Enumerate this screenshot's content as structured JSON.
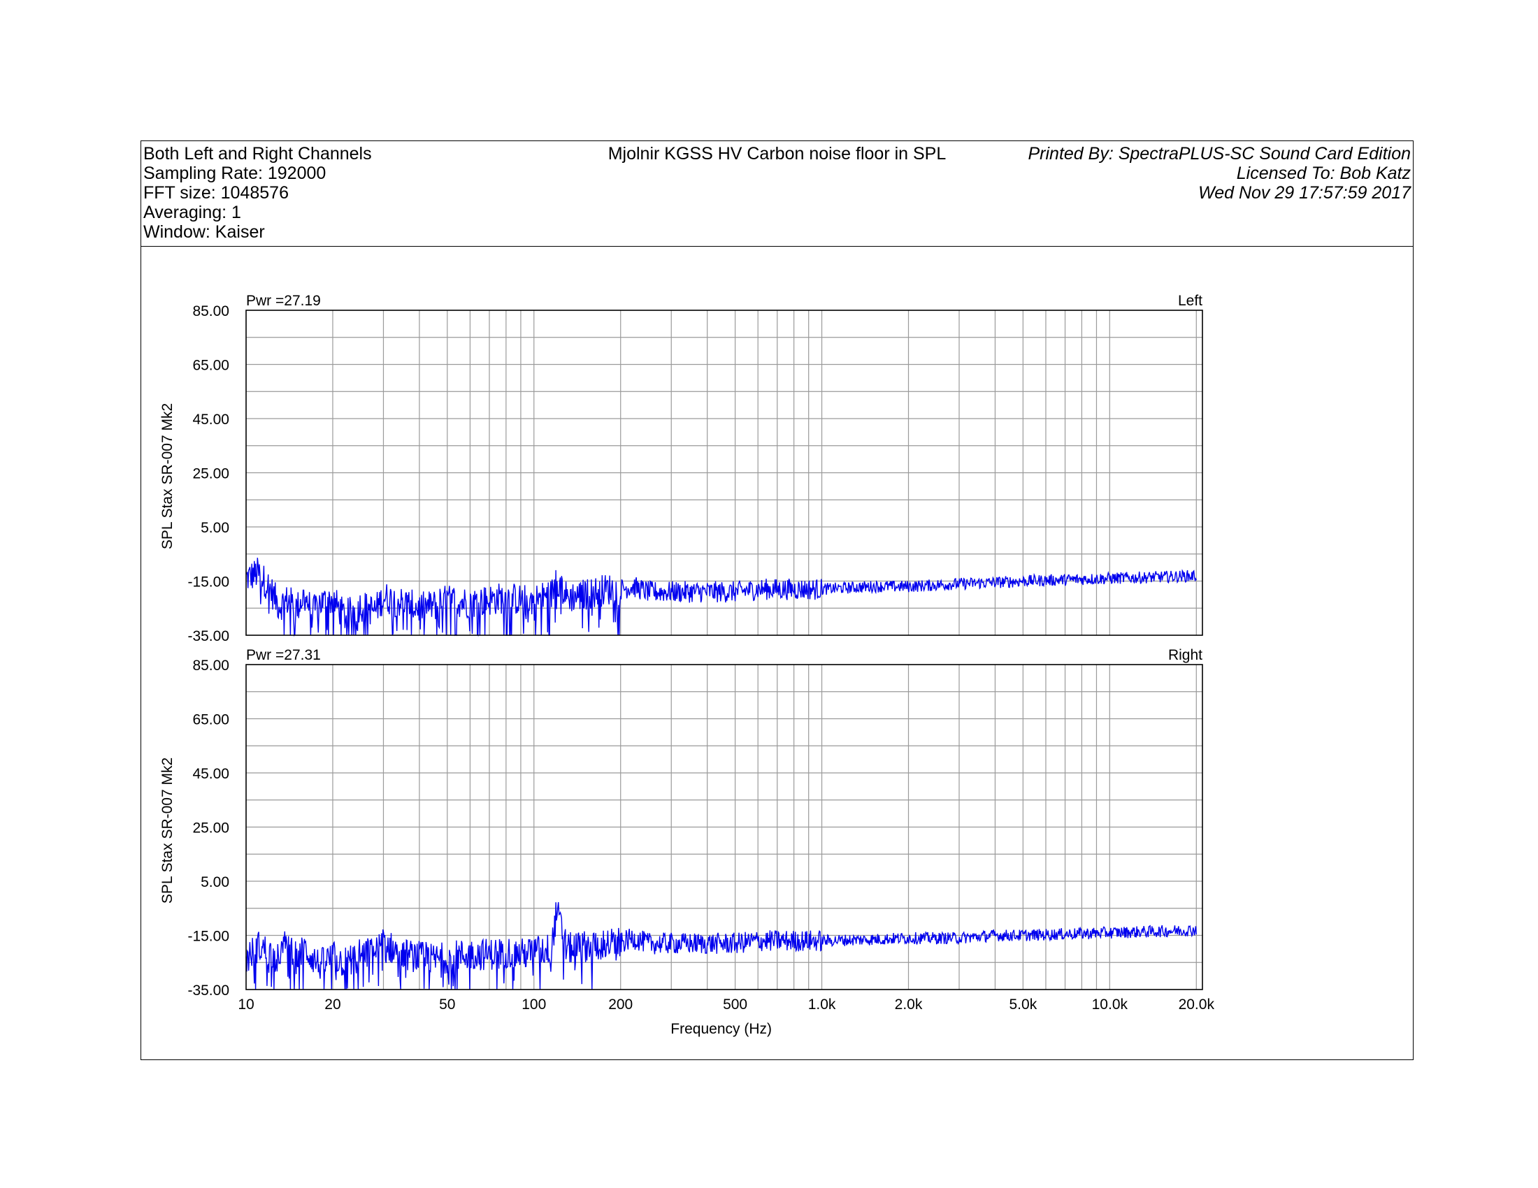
{
  "header": {
    "left": [
      "Both Left and Right Channels",
      "Sampling Rate: 192000",
      "FFT size: 1048576",
      "Averaging: 1",
      "Window: Kaiser"
    ],
    "center": "Mjolnir KGSS HV Carbon noise floor in SPL",
    "right": [
      "Printed By: SpectraPLUS-SC Sound Card Edition",
      "Licensed To: Bob Katz",
      "Wed Nov 29 17:57:59 2017"
    ]
  },
  "chart_data": [
    {
      "type": "line",
      "channel": "Left",
      "power_label": "Pwr =27.19",
      "ylabel": "SPL Stax SR-007 Mk2",
      "xlabel": "",
      "xscale": "log",
      "xlim": [
        10,
        21000
      ],
      "ylim": [
        -35,
        85
      ],
      "y_ticks": [
        85,
        65,
        45,
        25,
        5,
        -15,
        -35
      ],
      "y_tick_labels": [
        "85.00",
        "65.00",
        "45.00",
        "25.00",
        "5.00",
        "-15.00",
        "-35.00"
      ],
      "grid": true,
      "line_color": "#0000ee",
      "series_points": [
        [
          10,
          -14
        ],
        [
          11,
          -12
        ],
        [
          12,
          -17
        ],
        [
          13,
          -24
        ],
        [
          14,
          -22
        ],
        [
          15,
          -25
        ],
        [
          16,
          -20
        ],
        [
          17,
          -27
        ],
        [
          18,
          -23
        ],
        [
          20,
          -22
        ],
        [
          22,
          -28
        ],
        [
          25,
          -24
        ],
        [
          28,
          -26
        ],
        [
          30,
          -21
        ],
        [
          35,
          -23
        ],
        [
          40,
          -25
        ],
        [
          45,
          -24
        ],
        [
          50,
          -22
        ],
        [
          60,
          -23
        ],
        [
          70,
          -22
        ],
        [
          80,
          -21
        ],
        [
          90,
          -22
        ],
        [
          100,
          -22
        ],
        [
          115,
          -20
        ],
        [
          120,
          -14
        ],
        [
          130,
          -21
        ],
        [
          150,
          -20
        ],
        [
          180,
          -18
        ],
        [
          200,
          -18
        ],
        [
          220,
          -17
        ],
        [
          250,
          -19
        ],
        [
          300,
          -19
        ],
        [
          400,
          -19
        ],
        [
          500,
          -19
        ],
        [
          600,
          -18
        ],
        [
          700,
          -18
        ],
        [
          800,
          -18
        ],
        [
          1000,
          -18
        ],
        [
          1500,
          -17
        ],
        [
          2000,
          -17
        ],
        [
          3000,
          -16
        ],
        [
          4000,
          -15.5
        ],
        [
          5000,
          -15
        ],
        [
          7000,
          -14.5
        ],
        [
          10000,
          -14
        ],
        [
          15000,
          -13.5
        ],
        [
          20000,
          -13
        ]
      ]
    },
    {
      "type": "line",
      "channel": "Right",
      "power_label": "Pwr =27.31",
      "ylabel": "SPL Stax SR-007 Mk2",
      "xlabel": "Frequency (Hz)",
      "xscale": "log",
      "xlim": [
        10,
        21000
      ],
      "ylim": [
        -35,
        85
      ],
      "x_ticks": [
        10,
        20,
        50,
        100,
        200,
        500,
        1000,
        2000,
        5000,
        10000,
        20000
      ],
      "x_tick_labels": [
        "10",
        "20",
        "50",
        "100",
        "200",
        "500",
        "1.0k",
        "2.0k",
        "5.0k",
        "10.0k",
        "20.0k"
      ],
      "y_ticks": [
        85,
        65,
        45,
        25,
        5,
        -15,
        -35
      ],
      "y_tick_labels": [
        "85.00",
        "65.00",
        "45.00",
        "25.00",
        "5.00",
        "-15.00",
        "-35.00"
      ],
      "grid": true,
      "line_color": "#0000ee",
      "series_points": [
        [
          10,
          -24
        ],
        [
          11,
          -19
        ],
        [
          12,
          -21
        ],
        [
          13,
          -24
        ],
        [
          14,
          -16
        ],
        [
          15,
          -24
        ],
        [
          16,
          -20
        ],
        [
          18,
          -26
        ],
        [
          20,
          -23
        ],
        [
          22,
          -25
        ],
        [
          25,
          -22
        ],
        [
          28,
          -21
        ],
        [
          30,
          -18
        ],
        [
          35,
          -22
        ],
        [
          40,
          -23
        ],
        [
          45,
          -24
        ],
        [
          50,
          -23
        ],
        [
          60,
          -22
        ],
        [
          70,
          -22
        ],
        [
          80,
          -21
        ],
        [
          90,
          -22
        ],
        [
          100,
          -21
        ],
        [
          115,
          -20
        ],
        [
          120,
          -6
        ],
        [
          130,
          -20
        ],
        [
          150,
          -19
        ],
        [
          180,
          -18
        ],
        [
          200,
          -18
        ],
        [
          220,
          -16
        ],
        [
          250,
          -18
        ],
        [
          300,
          -18
        ],
        [
          400,
          -18
        ],
        [
          500,
          -18
        ],
        [
          600,
          -17
        ],
        [
          700,
          -17
        ],
        [
          800,
          -17
        ],
        [
          1000,
          -17
        ],
        [
          1500,
          -16.5
        ],
        [
          2000,
          -16
        ],
        [
          3000,
          -16
        ],
        [
          4000,
          -15
        ],
        [
          5000,
          -15
        ],
        [
          7000,
          -14.5
        ],
        [
          10000,
          -14
        ],
        [
          15000,
          -13.5
        ],
        [
          20000,
          -13
        ]
      ]
    }
  ]
}
